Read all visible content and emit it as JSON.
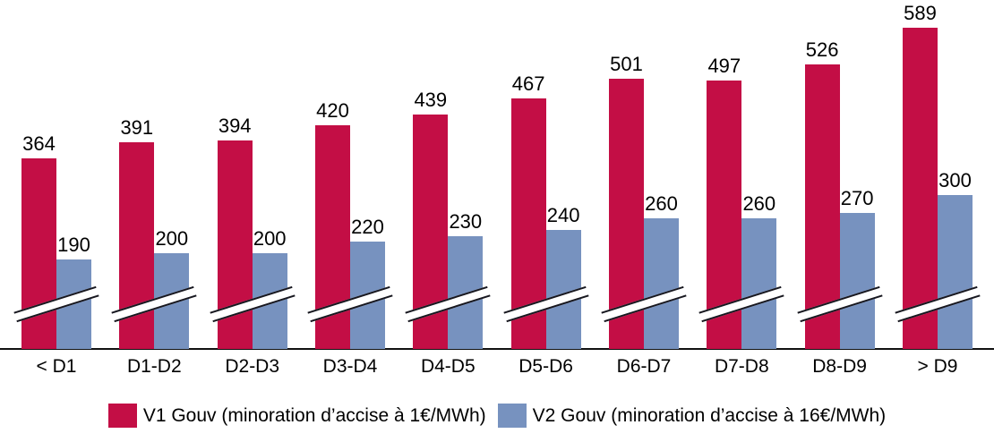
{
  "chart_data": {
    "type": "bar",
    "categories": [
      "< D1",
      "D1-D2",
      "D2-D3",
      "D3-D4",
      "D4-D5",
      "D5-D6",
      "D6-D7",
      "D7-D8",
      "D8-D9",
      "> D9"
    ],
    "series": [
      {
        "name": "V1 Gouv (minoration d’accise à 1€/MWh)",
        "color": "#C30E45",
        "values": [
          364,
          391,
          394,
          420,
          439,
          467,
          501,
          497,
          526,
          589
        ]
      },
      {
        "name": "V2 Gouv (minoration d’accise à 16€/MWh)",
        "color": "#7792BF",
        "values": [
          190,
          200,
          200,
          220,
          230,
          240,
          260,
          260,
          270,
          300
        ]
      }
    ],
    "title": "",
    "xlabel": "",
    "ylabel": "",
    "value_labels": true,
    "y_axis_visible": false,
    "grid": false,
    "axis_break": true,
    "legend_position": "bottom",
    "axis_color": "#111111"
  }
}
